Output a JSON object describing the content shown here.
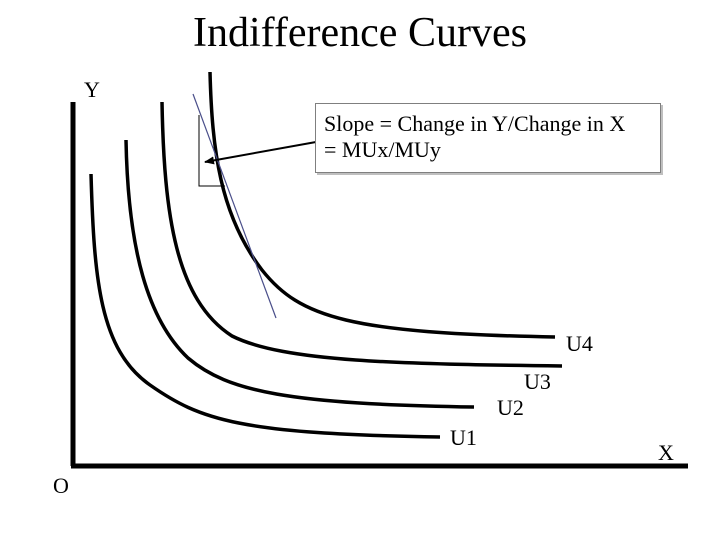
{
  "title": "Indifference Curves",
  "axes": {
    "y_label": "Y",
    "x_label": "X",
    "origin_label": "O"
  },
  "callout": {
    "line1": "Slope = Change in Y/Change in X",
    "line2": "= MUx/MUy"
  },
  "curves": [
    "U1",
    "U2",
    "U3",
    "U4"
  ],
  "colors": {
    "line": "#000000",
    "tangent": "#4a4f8a",
    "callout_border": "#7f7f7f"
  }
}
